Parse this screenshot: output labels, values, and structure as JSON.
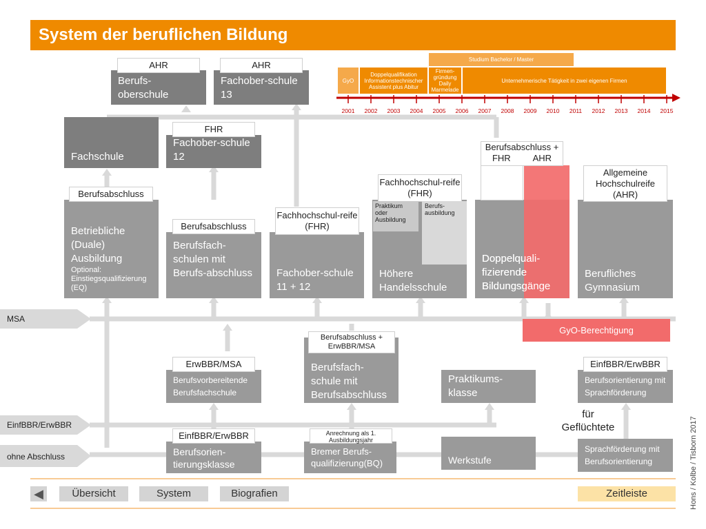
{
  "title": "System der beruflichen Bildung",
  "timeline": {
    "header": "Studium Bachelor / Master",
    "gyo": "GyO",
    "doppel": "Doppelqualifikation Informationstechnischer Assistent plus Abitur",
    "firmen": "Firmen-gründung Daily Marmelade",
    "unternehmer": "Unternehmerische Tätigkeit in zwei eigenen Firmen",
    "years": [
      "2001",
      "2002",
      "2003",
      "2004",
      "2005",
      "2006",
      "2007",
      "2008",
      "2009",
      "2010",
      "2011",
      "2012",
      "2013",
      "2014",
      "2015"
    ]
  },
  "labels": {
    "ahr1": "AHR",
    "ahr2": "AHR",
    "fhr_top": "FHR",
    "berufsabschluss1": "Berufsabschluss",
    "berufsabschluss2": "Berufsabschluss",
    "fhr_reife1": "Fachhochschul-reife (FHR)",
    "fhr_reife2": "Fachhochschul-reife (FHR)",
    "berufsabschluss_fhr_ahr_line1": "Berufsabschluss +",
    "berufsabschluss_fhr": "FHR",
    "berufsabschluss_ahr": "AHR",
    "allg_hochschulreife": "Allgemeine Hochschulreife (AHR)",
    "berufsabschluss_erwbbr": "Berufsabschluss + ErwBBR/MSA",
    "erwbbr_msa": "ErwBBR/MSA",
    "einfbbr_erwbbr_right": "EinfBBR/ErwBBR",
    "einfbbr_erwbbr_mid": "EinfBBR/ErwBBR",
    "anrechnung": "Anrechnung als 1. Ausbildungsjahr",
    "gyo_berechtigung": "GyO-Berechtigung",
    "fuer_gefluechtete": "für Geflüchtete"
  },
  "boxes": {
    "berufsoberschule": "Berufs-oberschule",
    "fachoberschule13": "Fachober-schule 13",
    "fachschule": "Fachschule",
    "fachoberschule12": "Fachober-schule 12",
    "betriebliche": "Betriebliche (Duale) Ausbildung",
    "betriebliche_opt": "Optional: Einstiegsqualifizierung (EQ)",
    "berufsfachschulen": "Berufsfach-schulen mit Berufs-abschluss",
    "fachoberschule1112": "Fachober-schule 11 + 12",
    "hoehere": "Höhere Handelsschule",
    "praktikum": "Praktikum oder Ausbildung",
    "berufsausbildung": "Berufs-ausbildung",
    "doppelquali": "Doppelquali-fizierende Bildungsgänge",
    "berufliches_gym": "Berufliches Gymnasium",
    "berufsvorbereitende": "Berufsvorbereitende Berufsfachschule",
    "berufsfachschule_mit": "Berufsfach-schule mit Berufsabschluss",
    "praktikumsklasse": "Praktikums-klasse",
    "berufsorientierung_sprach": "Berufsorientierung mit Sprachförderung",
    "berufsorientierungsklasse": "Berufsorien-tierungsklasse",
    "bremer": "Bremer Berufs-qualifizierung(BQ)",
    "werkstufe": "Werkstufe",
    "sprachfoerderung": "Sprachförderung mit Berufsorientierung"
  },
  "left_arrows": {
    "msa": "MSA",
    "einfbbr": "EinfBBR/ErwBBR",
    "ohne": "ohne Abschluss"
  },
  "nav": {
    "back": "◀",
    "uebersicht": "Übersicht",
    "system": "System",
    "biografien": "Biografien",
    "zeitleiste": "Zeitleiste"
  },
  "credit": "Hons / Kolbe / Tisborn 2017",
  "colors": {
    "accent": "#ef8a00",
    "grey_box": "#9a9a9a",
    "pink": "#f26b6b",
    "timeline_line": "#c00000",
    "arrow_grey": "#d9d9d9"
  }
}
